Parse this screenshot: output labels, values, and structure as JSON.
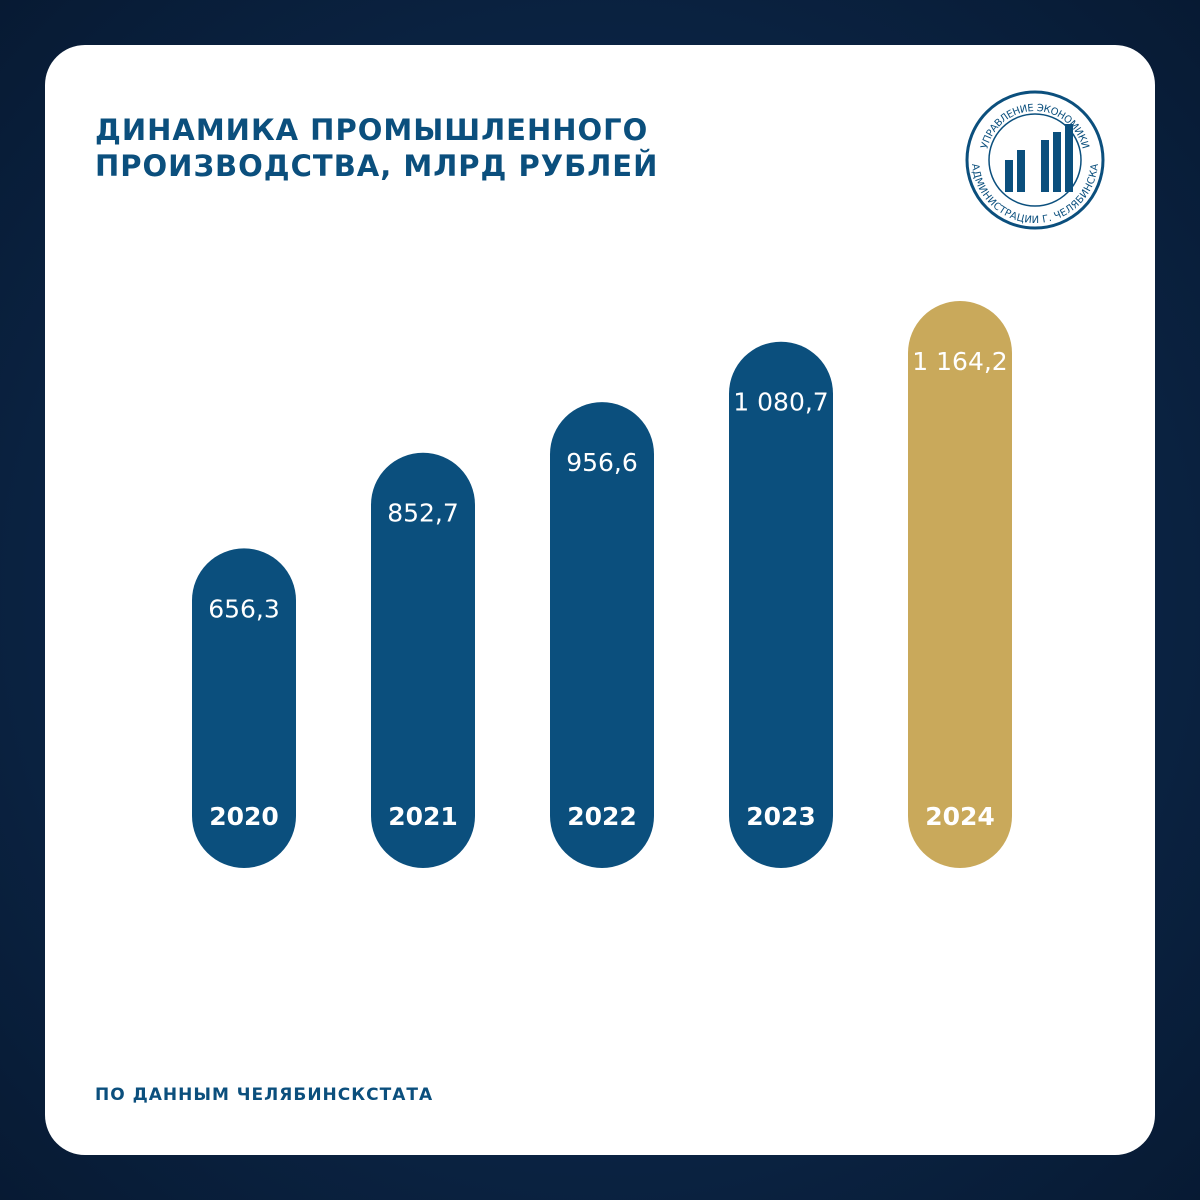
{
  "chart_data": {
    "type": "bar",
    "title": "ДИНАМИКА ПРОМЫШЛЕННОГО ПРОИЗВОДСТВА, МЛРД РУБЛЕЙ",
    "categories": [
      "2020",
      "2021",
      "2022",
      "2023",
      "2024"
    ],
    "values": [
      656.3,
      852.7,
      956.6,
      1080.7,
      1164.2
    ],
    "value_labels": [
      "656,3",
      "852,7",
      "956,6",
      "1 080,7",
      "1 164,2"
    ],
    "colors": [
      "#0b4f7d",
      "#0b4f7d",
      "#0b4f7d",
      "#0b4f7d",
      "#c9a95b"
    ],
    "source": "ПО ДАННЫМ ЧЕЛЯБИНСКСТАТА"
  },
  "logo": {
    "top_text": "УПРАВЛЕНИЕ ЭКОНОМИКИ",
    "bottom_text": "АДМИНИСТРАЦИИ Г. ЧЕЛЯБИНСКА"
  }
}
